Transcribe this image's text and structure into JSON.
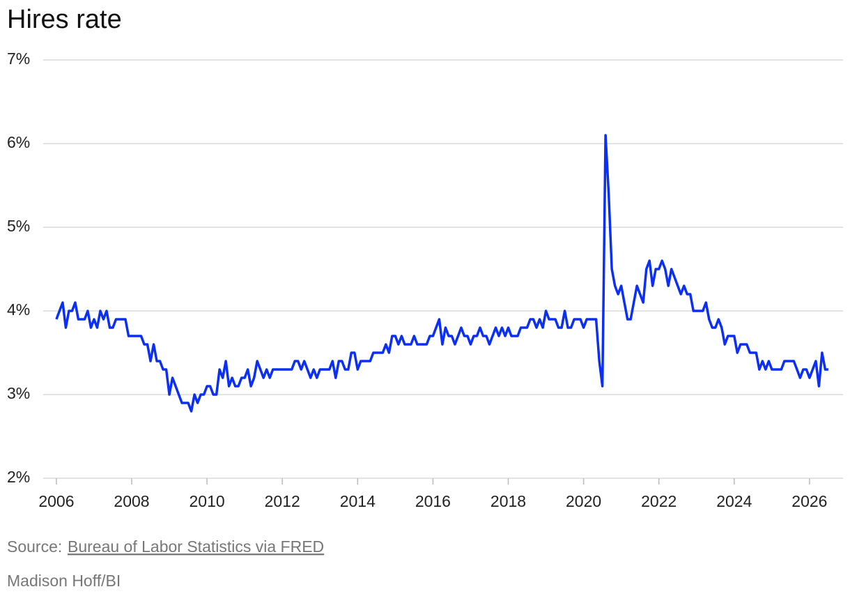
{
  "chart_data": {
    "type": "line",
    "title": "Hires rate",
    "x": [
      2006,
      2006.083,
      2006.167,
      2006.25,
      2006.333,
      2006.417,
      2006.5,
      2006.583,
      2006.667,
      2006.75,
      2006.833,
      2006.917,
      2007,
      2007.083,
      2007.167,
      2007.25,
      2007.333,
      2007.417,
      2007.5,
      2007.583,
      2007.667,
      2007.75,
      2007.833,
      2007.917,
      2008,
      2008.083,
      2008.167,
      2008.25,
      2008.333,
      2008.417,
      2008.5,
      2008.583,
      2008.667,
      2008.75,
      2008.833,
      2008.917,
      2009,
      2009.083,
      2009.167,
      2009.25,
      2009.333,
      2009.417,
      2009.5,
      2009.583,
      2009.667,
      2009.75,
      2009.833,
      2009.917,
      2010,
      2010.083,
      2010.167,
      2010.25,
      2010.333,
      2010.417,
      2010.5,
      2010.583,
      2010.667,
      2010.75,
      2010.833,
      2010.917,
      2011,
      2011.083,
      2011.167,
      2011.25,
      2011.333,
      2011.417,
      2011.5,
      2011.583,
      2011.667,
      2011.75,
      2011.833,
      2011.917,
      2012,
      2012.083,
      2012.167,
      2012.25,
      2012.333,
      2012.417,
      2012.5,
      2012.583,
      2012.667,
      2012.75,
      2012.833,
      2012.917,
      2013,
      2013.083,
      2013.167,
      2013.25,
      2013.333,
      2013.417,
      2013.5,
      2013.583,
      2013.667,
      2013.75,
      2013.833,
      2013.917,
      2014,
      2014.083,
      2014.167,
      2014.25,
      2014.333,
      2014.417,
      2014.5,
      2014.583,
      2014.667,
      2014.75,
      2014.833,
      2014.917,
      2015,
      2015.083,
      2015.167,
      2015.25,
      2015.333,
      2015.417,
      2015.5,
      2015.583,
      2015.667,
      2015.75,
      2015.833,
      2015.917,
      2016,
      2016.083,
      2016.167,
      2016.25,
      2016.333,
      2016.417,
      2016.5,
      2016.583,
      2016.667,
      2016.75,
      2016.833,
      2016.917,
      2017,
      2017.083,
      2017.167,
      2017.25,
      2017.333,
      2017.417,
      2017.5,
      2017.583,
      2017.667,
      2017.75,
      2017.833,
      2017.917,
      2018,
      2018.083,
      2018.167,
      2018.25,
      2018.333,
      2018.417,
      2018.5,
      2018.583,
      2018.667,
      2018.75,
      2018.833,
      2018.917,
      2019,
      2019.083,
      2019.167,
      2019.25,
      2019.333,
      2019.417,
      2019.5,
      2019.583,
      2019.667,
      2019.75,
      2019.833,
      2019.917,
      2020,
      2020.083,
      2020.167,
      2020.25,
      2020.333,
      2020.417,
      2020.5,
      2020.583,
      2020.667,
      2020.75,
      2020.833,
      2020.917,
      2021,
      2021.083,
      2021.167,
      2021.25,
      2021.333,
      2021.417,
      2021.5,
      2021.583,
      2021.667,
      2021.75,
      2021.833,
      2021.917,
      2022,
      2022.083,
      2022.167,
      2022.25,
      2022.333,
      2022.417,
      2022.5,
      2022.583,
      2022.667,
      2022.75,
      2022.833,
      2022.917,
      2023,
      2023.083,
      2023.167,
      2023.25,
      2023.333,
      2023.417,
      2023.5,
      2023.583,
      2023.667,
      2023.75,
      2023.833,
      2023.917,
      2024,
      2024.083,
      2024.167,
      2024.25,
      2024.333,
      2024.417,
      2024.5,
      2024.583,
      2024.667,
      2024.75,
      2024.833,
      2024.917,
      2025,
      2025.083,
      2025.167,
      2025.25,
      2025.333,
      2025.417,
      2025.5,
      2025.583,
      2025.667,
      2025.75,
      2025.833,
      2025.917,
      2026,
      2026.083,
      2026.167,
      2026.25,
      2026.333,
      2026.417,
      2026.5
    ],
    "values": [
      3.9,
      4.0,
      4.1,
      3.8,
      4.0,
      4.0,
      4.1,
      3.9,
      3.9,
      3.9,
      4.0,
      3.8,
      3.9,
      3.8,
      4.0,
      3.9,
      4.0,
      3.8,
      3.8,
      3.9,
      3.9,
      3.9,
      3.9,
      3.7,
      3.7,
      3.7,
      3.7,
      3.7,
      3.6,
      3.6,
      3.4,
      3.6,
      3.4,
      3.4,
      3.3,
      3.3,
      3.0,
      3.2,
      3.1,
      3.0,
      2.9,
      2.9,
      2.9,
      2.8,
      3.0,
      2.9,
      3.0,
      3.0,
      3.1,
      3.1,
      3.0,
      3.0,
      3.3,
      3.2,
      3.4,
      3.1,
      3.2,
      3.1,
      3.1,
      3.2,
      3.2,
      3.3,
      3.1,
      3.2,
      3.4,
      3.3,
      3.2,
      3.3,
      3.2,
      3.3,
      3.3,
      3.3,
      3.3,
      3.3,
      3.3,
      3.3,
      3.4,
      3.4,
      3.3,
      3.4,
      3.3,
      3.2,
      3.3,
      3.2,
      3.3,
      3.3,
      3.3,
      3.3,
      3.4,
      3.2,
      3.4,
      3.4,
      3.3,
      3.3,
      3.5,
      3.5,
      3.3,
      3.4,
      3.4,
      3.4,
      3.4,
      3.5,
      3.5,
      3.5,
      3.5,
      3.6,
      3.5,
      3.7,
      3.7,
      3.6,
      3.7,
      3.6,
      3.6,
      3.6,
      3.7,
      3.6,
      3.6,
      3.6,
      3.6,
      3.7,
      3.7,
      3.8,
      3.9,
      3.6,
      3.8,
      3.7,
      3.7,
      3.6,
      3.7,
      3.8,
      3.7,
      3.7,
      3.6,
      3.7,
      3.7,
      3.8,
      3.7,
      3.7,
      3.6,
      3.7,
      3.8,
      3.7,
      3.8,
      3.7,
      3.8,
      3.7,
      3.7,
      3.7,
      3.8,
      3.8,
      3.8,
      3.9,
      3.9,
      3.8,
      3.9,
      3.8,
      4.0,
      3.9,
      3.9,
      3.9,
      3.8,
      3.8,
      4.0,
      3.8,
      3.8,
      3.9,
      3.9,
      3.9,
      3.8,
      3.9,
      3.9,
      3.9,
      3.9,
      3.4,
      3.1,
      6.1,
      5.4,
      4.5,
      4.3,
      4.2,
      4.3,
      4.1,
      3.9,
      3.9,
      4.1,
      4.3,
      4.2,
      4.1,
      4.5,
      4.6,
      4.3,
      4.5,
      4.5,
      4.6,
      4.5,
      4.3,
      4.5,
      4.4,
      4.3,
      4.2,
      4.3,
      4.2,
      4.2,
      4.0,
      4.0,
      4.0,
      4.0,
      4.1,
      3.9,
      3.8,
      3.8,
      3.9,
      3.8,
      3.6,
      3.7,
      3.7,
      3.7,
      3.5,
      3.6,
      3.6,
      3.6,
      3.5,
      3.5,
      3.5,
      3.3,
      3.4,
      3.3,
      3.4,
      3.3,
      3.3,
      3.3,
      3.3,
      3.4,
      3.4,
      3.4,
      3.4,
      3.3,
      3.2,
      3.3,
      3.3,
      3.2,
      3.3,
      3.4,
      3.1,
      3.5,
      3.3,
      3.3
    ],
    "color": "#0b2ff5",
    "xlim": [
      2005.65,
      2026.89
    ],
    "xticks": [
      2006,
      2008,
      2010,
      2012,
      2014,
      2016,
      2018,
      2020,
      2022,
      2024,
      2026
    ],
    "ylim": [
      2,
      7
    ],
    "yticks": [
      {
        "value": 2,
        "label": "2%"
      },
      {
        "value": 3,
        "label": "3%"
      },
      {
        "value": 4,
        "label": "4%"
      },
      {
        "value": 5,
        "label": "5%"
      },
      {
        "value": 6,
        "label": "6%"
      },
      {
        "value": 7,
        "label": "7%"
      }
    ],
    "grid": true
  },
  "footer": {
    "source_label": "Source:",
    "source_link": "Bureau of Labor Statistics via FRED",
    "credit": "Madison Hoff/BI"
  }
}
